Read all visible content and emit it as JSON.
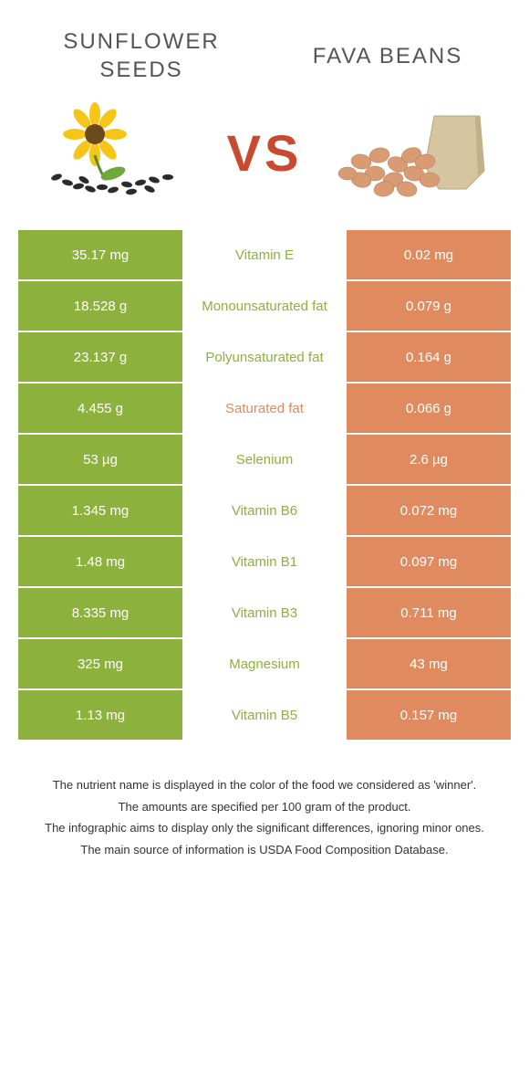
{
  "colors": {
    "left": "#8cb13d",
    "right": "#e08a5f",
    "left_label": "#8cb13d",
    "right_label": "#e08a5f"
  },
  "header": {
    "left_title": "SUNFLOWER SEEDS",
    "right_title": "FAVA BEANS",
    "vs_text": "VS"
  },
  "rows": [
    {
      "left": "35.17 mg",
      "label": "Vitamin E",
      "right": "0.02 mg",
      "winner": "left"
    },
    {
      "left": "18.528 g",
      "label": "Monounsaturated fat",
      "right": "0.079 g",
      "winner": "left"
    },
    {
      "left": "23.137 g",
      "label": "Polyunsaturated fat",
      "right": "0.164 g",
      "winner": "left"
    },
    {
      "left": "4.455 g",
      "label": "Saturated fat",
      "right": "0.066 g",
      "winner": "right"
    },
    {
      "left": "53 µg",
      "label": "Selenium",
      "right": "2.6 µg",
      "winner": "left"
    },
    {
      "left": "1.345 mg",
      "label": "Vitamin B6",
      "right": "0.072 mg",
      "winner": "left"
    },
    {
      "left": "1.48 mg",
      "label": "Vitamin B1",
      "right": "0.097 mg",
      "winner": "left"
    },
    {
      "left": "8.335 mg",
      "label": "Vitamin B3",
      "right": "0.711 mg",
      "winner": "left"
    },
    {
      "left": "325 mg",
      "label": "Magnesium",
      "right": "43 mg",
      "winner": "left"
    },
    {
      "left": "1.13 mg",
      "label": "Vitamin B5",
      "right": "0.157 mg",
      "winner": "left"
    }
  ],
  "footnotes": [
    "The nutrient name is displayed in the color of the food we considered as 'winner'.",
    "The amounts are specified per 100 gram of the product.",
    "The infographic aims to display only the significant differences, ignoring minor ones.",
    "The main source of information is USDA Food Composition Database."
  ]
}
